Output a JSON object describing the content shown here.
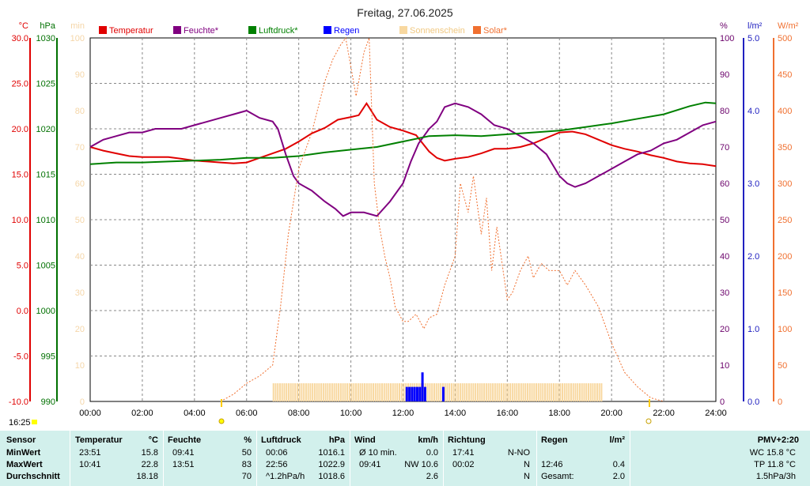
{
  "chart_data": {
    "type": "line",
    "title": "Freitag, 27.06.2025",
    "time_label": "16:25",
    "x_ticks": [
      "00:00",
      "02:00",
      "04:00",
      "06:00",
      "08:00",
      "10:00",
      "12:00",
      "14:00",
      "16:00",
      "18:00",
      "20:00",
      "22:00",
      "24:00"
    ],
    "axes": {
      "temperature": {
        "unit": "°C",
        "min": -10,
        "max": 30,
        "ticks": [
          "30.0",
          "25.0",
          "20.0",
          "15.0",
          "10.0",
          "5.0",
          "0.0",
          "-5.0",
          "-10.0"
        ],
        "color": "#e00000"
      },
      "pressure": {
        "unit": "hPa",
        "min": 990,
        "max": 1030,
        "ticks": [
          "1030",
          "1025",
          "1020",
          "1015",
          "1010",
          "1005",
          "1000",
          "995",
          "990"
        ],
        "color": "#007000"
      },
      "minutes": {
        "unit": "min",
        "min": 0,
        "max": 100,
        "ticks": [
          "100",
          "90",
          "80",
          "70",
          "60",
          "50",
          "40",
          "30",
          "20",
          "10",
          "0"
        ],
        "color": "#f5d6a8"
      },
      "humidity": {
        "unit": "%",
        "min": 0,
        "max": 100,
        "ticks": [
          "100",
          "90",
          "80",
          "70",
          "60",
          "50",
          "40",
          "30",
          "20",
          "10",
          "0"
        ],
        "color": "#6a006a"
      },
      "rain": {
        "unit": "l/m²",
        "min": 0,
        "max": 5,
        "ticks": [
          "5.0",
          "4.0",
          "3.0",
          "2.0",
          "1.0",
          "0.0"
        ],
        "color": "#2020c0"
      },
      "solar": {
        "unit": "W/m²",
        "min": 0,
        "max": 500,
        "ticks": [
          "500",
          "450",
          "400",
          "350",
          "300",
          "250",
          "200",
          "150",
          "100",
          "50",
          "0"
        ],
        "color": "#f07030"
      }
    },
    "legend": [
      {
        "label": "Temperatur",
        "color": "#e00000"
      },
      {
        "label": "Feuchte*",
        "color": "#800080"
      },
      {
        "label": "Luftdruck*",
        "color": "#008000"
      },
      {
        "label": "Regen",
        "color": "#0000ff"
      },
      {
        "label": "Sonnenschein",
        "color": "#f8d8a0"
      },
      {
        "label": "Solar*",
        "color": "#f07030"
      }
    ],
    "series": [
      {
        "name": "Temperatur",
        "axis": "temperature",
        "color": "#e00000",
        "x": [
          0,
          0.5,
          1,
          1.5,
          2,
          2.5,
          3,
          3.5,
          4,
          4.5,
          5,
          5.5,
          6,
          6.5,
          7,
          7.5,
          8,
          8.5,
          9,
          9.5,
          10,
          10.3,
          10.6,
          11,
          11.5,
          12,
          12.5,
          13,
          13.3,
          13.6,
          14,
          14.5,
          15,
          15.5,
          16,
          16.5,
          17,
          17.5,
          18,
          18.5,
          19,
          19.5,
          20,
          20.5,
          21,
          21.5,
          22,
          22.5,
          23,
          23.5,
          24
        ],
        "y": [
          18.0,
          17.6,
          17.3,
          17.0,
          16.9,
          16.9,
          16.9,
          16.7,
          16.5,
          16.4,
          16.3,
          16.2,
          16.3,
          16.8,
          17.3,
          17.8,
          18.6,
          19.5,
          20.1,
          21.0,
          21.3,
          21.5,
          22.8,
          21.0,
          20.2,
          19.8,
          19.3,
          17.5,
          16.8,
          16.5,
          16.7,
          16.9,
          17.3,
          17.8,
          17.8,
          18.0,
          18.4,
          19.0,
          19.6,
          19.7,
          19.4,
          18.8,
          18.2,
          17.8,
          17.5,
          17.1,
          16.8,
          16.4,
          16.2,
          16.1,
          15.9
        ]
      },
      {
        "name": "Feuchte*",
        "axis": "humidity",
        "color": "#800080",
        "x": [
          0,
          0.5,
          1,
          1.5,
          2,
          2.5,
          3,
          3.5,
          4,
          4.5,
          5,
          5.5,
          6,
          6.5,
          7,
          7.2,
          7.5,
          7.8,
          8,
          8.5,
          9,
          9.4,
          9.7,
          10,
          10.5,
          11,
          11.5,
          12,
          12.3,
          12.6,
          13,
          13.3,
          13.6,
          14,
          14.5,
          15,
          15.5,
          16,
          16.5,
          17,
          17.5,
          18,
          18.3,
          18.6,
          19,
          19.5,
          20,
          20.5,
          21,
          21.5,
          22,
          22.5,
          23,
          23.5,
          24
        ],
        "y": [
          70,
          72,
          73,
          74,
          74,
          75,
          75,
          75,
          76,
          77,
          78,
          79,
          80,
          78,
          77,
          75,
          68,
          62,
          60,
          58,
          55,
          53,
          51,
          52,
          52,
          51,
          55,
          60,
          66,
          71,
          75,
          77,
          81,
          82,
          81,
          79,
          76,
          75,
          73,
          71,
          68,
          62,
          60,
          59,
          60,
          62,
          64,
          66,
          68,
          69,
          71,
          72,
          74,
          76,
          77
        ]
      },
      {
        "name": "Luftdruck*",
        "axis": "pressure",
        "color": "#008000",
        "x": [
          0,
          1,
          2,
          3,
          4,
          5,
          6,
          7,
          8,
          9,
          10,
          11,
          12,
          13,
          14,
          15,
          16,
          17,
          18,
          19,
          20,
          21,
          22,
          23,
          23.6,
          24
        ],
        "y": [
          1016.1,
          1016.3,
          1016.3,
          1016.4,
          1016.5,
          1016.6,
          1016.8,
          1016.8,
          1017.0,
          1017.4,
          1017.7,
          1018.0,
          1018.6,
          1019.2,
          1019.3,
          1019.2,
          1019.4,
          1019.6,
          1019.8,
          1020.2,
          1020.6,
          1021.1,
          1021.6,
          1022.5,
          1022.9,
          1022.8
        ]
      },
      {
        "name": "Solar*",
        "axis": "solar",
        "color": "#f07030",
        "x": [
          5,
          5.5,
          6,
          6.5,
          7,
          7.3,
          7.6,
          8,
          8.5,
          9,
          9.3,
          9.6,
          9.8,
          10,
          10.2,
          10.5,
          10.7,
          10.9,
          11.1,
          11.3,
          11.5,
          11.7,
          12,
          12.2,
          12.5,
          12.8,
          13,
          13.3,
          13.6,
          14,
          14.2,
          14.5,
          14.7,
          15,
          15.2,
          15.4,
          15.6,
          15.8,
          16,
          16.2,
          16.5,
          16.8,
          17,
          17.3,
          17.6,
          18,
          18.3,
          18.6,
          19,
          19.5,
          20,
          20.5,
          21,
          21.5,
          22
        ],
        "y": [
          0,
          10,
          25,
          35,
          50,
          130,
          230,
          320,
          370,
          440,
          470,
          490,
          500,
          460,
          420,
          480,
          500,
          300,
          240,
          200,
          170,
          130,
          110,
          110,
          120,
          100,
          115,
          120,
          160,
          200,
          300,
          260,
          310,
          230,
          280,
          180,
          240,
          190,
          140,
          150,
          180,
          200,
          170,
          190,
          180,
          180,
          160,
          180,
          160,
          130,
          80,
          40,
          20,
          5,
          0
        ]
      },
      {
        "name": "Sonnenschein",
        "axis": "minutes",
        "color": "#f8d8a0",
        "bars_start_hour": 7.0,
        "bars_end_hour": 19.6,
        "bar_level_minutes": 5
      },
      {
        "name": "Regen",
        "axis": "rain",
        "color": "#0000ff",
        "x": [
          12.1,
          12.2,
          12.3,
          12.4,
          12.5,
          12.6,
          12.7,
          12.8,
          13.5
        ],
        "y": [
          0.2,
          0.2,
          0.2,
          0.2,
          0.2,
          0.2,
          0.4,
          0.2,
          0.2
        ]
      }
    ]
  },
  "stats": {
    "pmv_title": "PMV+2:20",
    "headers": {
      "sensor": "Sensor",
      "temperature": "Temperatur",
      "temperature_unit": "°C",
      "humidity": "Feuchte",
      "humidity_unit": "%",
      "pressure": "Luftdruck",
      "pressure_unit": "hPa",
      "wind": "Wind",
      "wind_unit": "km/h",
      "direction": "Richtung",
      "rain": "Regen",
      "rain_unit": "l/m²"
    },
    "rows": [
      {
        "label": "MinWert",
        "temp_time": "23:51",
        "temp_val": "15.8",
        "hum_time": "09:41",
        "hum_val": "50",
        "press_time": "00:06",
        "press_val": "1016.1",
        "wind_time": "Ø 10 min.",
        "wind_val": "0.0",
        "dir_time": "17:41",
        "dir_val": "N-NO",
        "rain_time": "",
        "rain_val": "",
        "pmv": "WC 15.8 °C"
      },
      {
        "label": "MaxWert",
        "temp_time": "10:41",
        "temp_val": "22.8",
        "hum_time": "13:51",
        "hum_val": "83",
        "press_time": "22:56",
        "press_val": "1022.9",
        "wind_time": "09:41",
        "wind_val": "NW 10.6",
        "dir_time": "00:02",
        "dir_val": "N",
        "rain_time": "12:46",
        "rain_val": "0.4",
        "pmv": "TP 11.8 °C"
      },
      {
        "label": "Durchschnitt",
        "temp_time": "",
        "temp_val": "18.18",
        "hum_time": "",
        "hum_val": "70",
        "press_time": "^1.2hPa/h",
        "press_val": "1018.6",
        "wind_time": "",
        "wind_val": "2.6",
        "dir_time": "",
        "dir_val": "N",
        "rain_time": "Gesamt:",
        "rain_val": "2.0",
        "pmv": "1.5hPa/3h"
      }
    ]
  }
}
